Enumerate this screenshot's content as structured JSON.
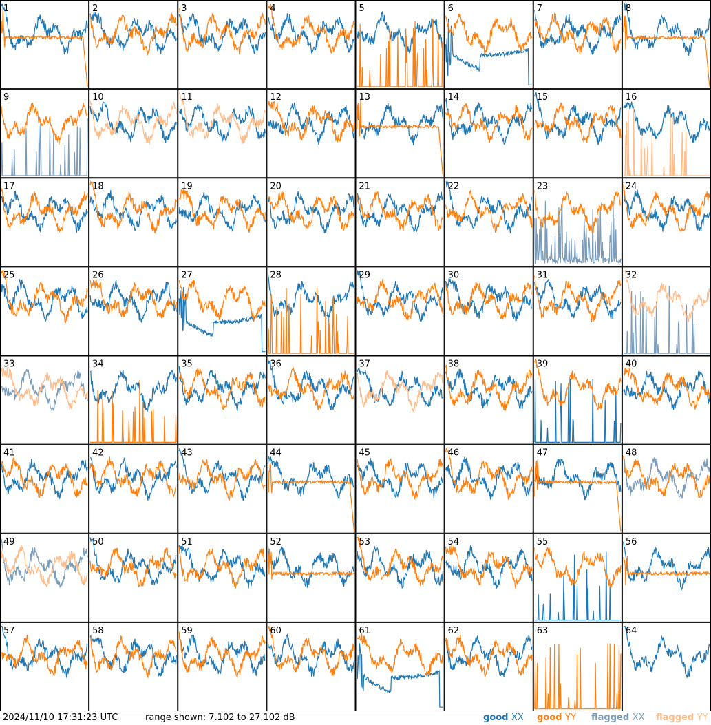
{
  "chart_data": {
    "type": "line",
    "description_grid": "8x8 small multiples of per-antenna spectra",
    "panel_labels": [
      "1",
      "2",
      "3",
      "4",
      "5",
      "6",
      "7",
      "8",
      "9",
      "10",
      "11",
      "12",
      "13",
      "14",
      "15",
      "16",
      "17",
      "18",
      "19",
      "20",
      "21",
      "22",
      "23",
      "24",
      "25",
      "26",
      "27",
      "28",
      "29",
      "30",
      "31",
      "32",
      "33",
      "34",
      "35",
      "36",
      "37",
      "38",
      "39",
      "40",
      "41",
      "42",
      "43",
      "44",
      "45",
      "46",
      "47",
      "48",
      "49",
      "50",
      "51",
      "52",
      "53",
      "54",
      "55",
      "56",
      "57",
      "58",
      "59",
      "60",
      "61",
      "62",
      "63",
      "64"
    ],
    "ylim": [
      7.102,
      27.102
    ],
    "yunit": "dB",
    "series_styles": {
      "good_xx": {
        "color": "#1f77b4"
      },
      "good_yy": {
        "color": "#ff7f0e"
      },
      "flagged_xx": {
        "color": "#7a9cba"
      },
      "flagged_yy": {
        "color": "#ffbb88"
      }
    },
    "panels": [
      {
        "n": 1,
        "xx": "good",
        "yy": "good",
        "yy_shape": "flat_drop"
      },
      {
        "n": 2,
        "xx": "good",
        "yy": "good"
      },
      {
        "n": 3,
        "xx": "good",
        "yy": "good"
      },
      {
        "n": 4,
        "xx": "good",
        "yy": "good"
      },
      {
        "n": 5,
        "xx": "good",
        "yy": "good",
        "yy_shape": "spikes"
      },
      {
        "n": 6,
        "xx": "good",
        "yy": "good",
        "xx_shape": "sag"
      },
      {
        "n": 7,
        "xx": "good",
        "yy": "good"
      },
      {
        "n": 8,
        "xx": "good",
        "yy": "good",
        "yy_shape": "flat_drop"
      },
      {
        "n": 9,
        "xx": "flagged",
        "yy": "good",
        "xx_shape": "spikes"
      },
      {
        "n": 10,
        "xx": "good",
        "yy": "flagged"
      },
      {
        "n": 11,
        "xx": "good",
        "yy": "flagged"
      },
      {
        "n": 12,
        "xx": "good",
        "yy": "good"
      },
      {
        "n": 13,
        "xx": "good",
        "yy": "good",
        "yy_shape": "flat_drop"
      },
      {
        "n": 14,
        "xx": "good",
        "yy": "good"
      },
      {
        "n": 15,
        "xx": "good",
        "yy": "good"
      },
      {
        "n": 16,
        "xx": "good",
        "yy": "flagged",
        "yy_shape": "spikes"
      },
      {
        "n": 17,
        "xx": "good",
        "yy": "good"
      },
      {
        "n": 18,
        "xx": "good",
        "yy": "good"
      },
      {
        "n": 19,
        "xx": "good",
        "yy": "good"
      },
      {
        "n": 20,
        "xx": "good",
        "yy": "good"
      },
      {
        "n": 21,
        "xx": "good",
        "yy": "good"
      },
      {
        "n": 22,
        "xx": "good",
        "yy": "good"
      },
      {
        "n": 23,
        "xx": "flagged",
        "yy": "good",
        "xx_shape": "noisy_low"
      },
      {
        "n": 24,
        "xx": "good",
        "yy": "good"
      },
      {
        "n": 25,
        "xx": "good",
        "yy": "good"
      },
      {
        "n": 26,
        "xx": "good",
        "yy": "good"
      },
      {
        "n": 27,
        "xx": "good",
        "yy": "good",
        "xx_shape": "sag"
      },
      {
        "n": 28,
        "xx": "good",
        "yy": "good",
        "yy_shape": "spikes"
      },
      {
        "n": 29,
        "xx": "good",
        "yy": "good"
      },
      {
        "n": 30,
        "xx": "good",
        "yy": "good"
      },
      {
        "n": 31,
        "xx": "good",
        "yy": "good"
      },
      {
        "n": 32,
        "xx": "flagged",
        "yy": "flagged",
        "xx_shape": "spikes"
      },
      {
        "n": 33,
        "xx": "flagged",
        "yy": "flagged"
      },
      {
        "n": 34,
        "xx": "good",
        "yy": "good",
        "yy_shape": "spikes"
      },
      {
        "n": 35,
        "xx": "good",
        "yy": "good"
      },
      {
        "n": 36,
        "xx": "good",
        "yy": "good"
      },
      {
        "n": 37,
        "xx": "good",
        "yy": "flagged"
      },
      {
        "n": 38,
        "xx": "good",
        "yy": "good"
      },
      {
        "n": 39,
        "xx": "good",
        "yy": "good",
        "xx_shape": "spikes"
      },
      {
        "n": 40,
        "xx": "good",
        "yy": "good"
      },
      {
        "n": 41,
        "xx": "good",
        "yy": "good"
      },
      {
        "n": 42,
        "xx": "good",
        "yy": "good"
      },
      {
        "n": 43,
        "xx": "good",
        "yy": "good"
      },
      {
        "n": 44,
        "xx": "good",
        "yy": "good",
        "yy_shape": "flat_drop"
      },
      {
        "n": 45,
        "xx": "good",
        "yy": "good"
      },
      {
        "n": 46,
        "xx": "good",
        "yy": "good"
      },
      {
        "n": 47,
        "xx": "good",
        "yy": "good",
        "yy_shape": "flat_drop"
      },
      {
        "n": 48,
        "xx": "flagged",
        "yy": "good"
      },
      {
        "n": 49,
        "xx": "flagged",
        "yy": "flagged"
      },
      {
        "n": 50,
        "xx": "good",
        "yy": "good"
      },
      {
        "n": 51,
        "xx": "good",
        "yy": "good"
      },
      {
        "n": 52,
        "xx": "good",
        "yy": "good",
        "yy_shape": "flat"
      },
      {
        "n": 53,
        "xx": "good",
        "yy": "good"
      },
      {
        "n": 54,
        "xx": "good",
        "yy": "good"
      },
      {
        "n": 55,
        "xx": "good",
        "yy": "good",
        "xx_shape": "spikes"
      },
      {
        "n": 56,
        "xx": "good",
        "yy": "good",
        "yy_shape": "flat"
      },
      {
        "n": 57,
        "xx": "good",
        "yy": "good"
      },
      {
        "n": 58,
        "xx": "good",
        "yy": "good"
      },
      {
        "n": 59,
        "xx": "good",
        "yy": "good"
      },
      {
        "n": 60,
        "xx": "good",
        "yy": "good"
      },
      {
        "n": 61,
        "xx": "good",
        "yy": "good",
        "xx_shape": "sag"
      },
      {
        "n": 62,
        "xx": "good",
        "yy": "good"
      },
      {
        "n": 63,
        "xx": "none",
        "yy": "good",
        "yy_shape": "spikes"
      },
      {
        "n": 64,
        "xx": "good",
        "yy": "none"
      }
    ]
  },
  "footer": {
    "timestamp": "2024/11/10 17:31:23 UTC",
    "range_text": "range shown: 7.102 to 27.102 dB",
    "legend": {
      "good_label": "good",
      "flagged_label": "flagged",
      "xx": "XX",
      "yy": "YY"
    }
  }
}
